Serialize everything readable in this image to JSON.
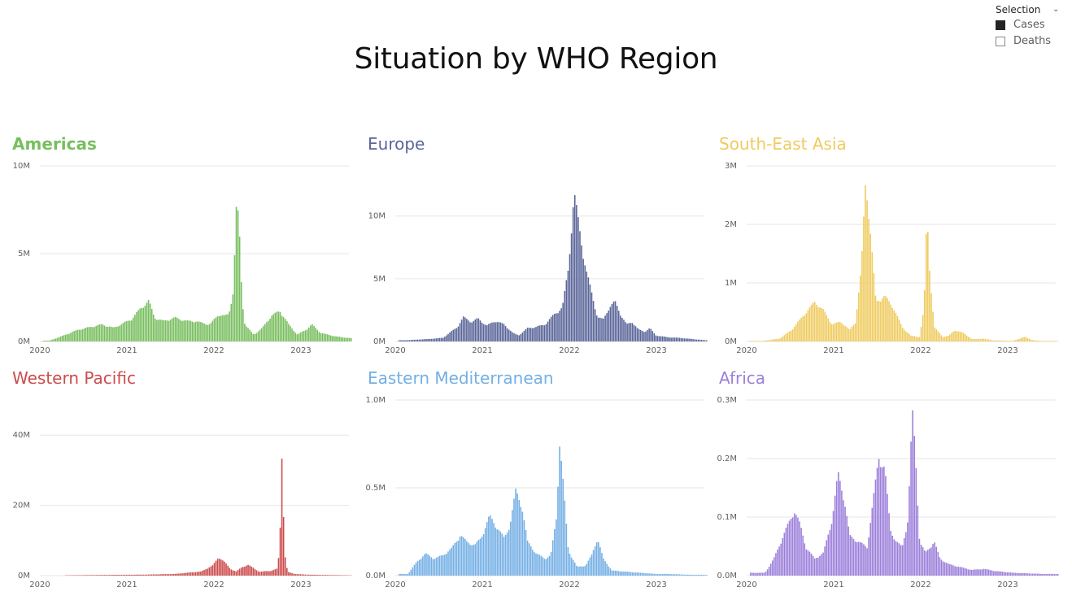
{
  "page_title": "Situation by WHO Region",
  "selection": {
    "title": "Selection",
    "options": [
      {
        "label": "Cases",
        "checked": true
      },
      {
        "label": "Deaths",
        "checked": false
      }
    ]
  },
  "chart_data": [
    {
      "type": "bar",
      "title": "Americas",
      "title_bold": true,
      "color": "#78BE5F",
      "x_ticks": [
        "2020",
        "2021",
        "2022",
        "2023"
      ],
      "y_ticks": [
        "0M",
        "5M",
        "10M"
      ],
      "y_tick_values": [
        0,
        5,
        10
      ],
      "ylim": [
        0,
        10
      ],
      "unit": "M",
      "peaks": [
        [
          0.02,
          0.05
        ],
        [
          0.06,
          0.3
        ],
        [
          0.12,
          0.7
        ],
        [
          0.2,
          1.0
        ],
        [
          0.24,
          0.8
        ],
        [
          0.3,
          1.3
        ],
        [
          0.33,
          1.9
        ],
        [
          0.36,
          2.4
        ],
        [
          0.38,
          1.4
        ],
        [
          0.41,
          1.2
        ],
        [
          0.45,
          1.4
        ],
        [
          0.49,
          1.2
        ],
        [
          0.52,
          1.2
        ],
        [
          0.54,
          1.1
        ],
        [
          0.57,
          1.0
        ],
        [
          0.6,
          1.6
        ],
        [
          0.62,
          1.5
        ],
        [
          0.635,
          1.6
        ],
        [
          0.65,
          3.0
        ],
        [
          0.662,
          8.5
        ],
        [
          0.672,
          6.0
        ],
        [
          0.68,
          2.5
        ],
        [
          0.69,
          1.0
        ],
        [
          0.72,
          0.4
        ],
        [
          0.75,
          0.8
        ],
        [
          0.78,
          1.5
        ],
        [
          0.81,
          1.8
        ],
        [
          0.84,
          1.0
        ],
        [
          0.87,
          0.4
        ],
        [
          0.9,
          0.7
        ],
        [
          0.92,
          1.0
        ],
        [
          0.95,
          0.5
        ],
        [
          1.0,
          0.3
        ],
        [
          1.05,
          0.2
        ],
        [
          1.1,
          0.05
        ]
      ]
    },
    {
      "type": "bar",
      "title": "Europe",
      "title_bold": false,
      "color": "#5A6599",
      "x_ticks": [
        "2020",
        "2021",
        "2022",
        "2023"
      ],
      "y_ticks": [
        "0M",
        "5M",
        "10M"
      ],
      "y_tick_values": [
        0,
        5,
        10
      ],
      "ylim": [
        0,
        14
      ],
      "unit": "M",
      "peaks": [
        [
          0.02,
          0.1
        ],
        [
          0.1,
          0.2
        ],
        [
          0.15,
          0.3
        ],
        [
          0.2,
          1.2
        ],
        [
          0.22,
          2.0
        ],
        [
          0.25,
          1.6
        ],
        [
          0.27,
          1.9
        ],
        [
          0.3,
          1.3
        ],
        [
          0.33,
          1.7
        ],
        [
          0.36,
          1.4
        ],
        [
          0.39,
          0.7
        ],
        [
          0.41,
          0.5
        ],
        [
          0.44,
          1.1
        ],
        [
          0.47,
          1.2
        ],
        [
          0.5,
          1.4
        ],
        [
          0.53,
          2.2
        ],
        [
          0.56,
          2.8
        ],
        [
          0.58,
          6.0
        ],
        [
          0.6,
          12.2
        ],
        [
          0.62,
          9.0
        ],
        [
          0.64,
          6.0
        ],
        [
          0.66,
          4.0
        ],
        [
          0.68,
          2.0
        ],
        [
          0.7,
          1.8
        ],
        [
          0.72,
          2.8
        ],
        [
          0.74,
          3.3
        ],
        [
          0.76,
          2.2
        ],
        [
          0.78,
          1.4
        ],
        [
          0.8,
          1.6
        ],
        [
          0.82,
          1.0
        ],
        [
          0.84,
          0.8
        ],
        [
          0.86,
          1.1
        ],
        [
          0.88,
          0.5
        ],
        [
          0.92,
          0.35
        ],
        [
          0.96,
          0.3
        ],
        [
          1.05,
          0.1
        ]
      ]
    },
    {
      "type": "bar",
      "title": "South-East Asia",
      "title_bold": false,
      "color": "#EFCB5F",
      "x_ticks": [
        "2020",
        "2021",
        "2022",
        "2023"
      ],
      "y_ticks": [
        "0M",
        "1M",
        "2M",
        "3M"
      ],
      "y_tick_values": [
        0,
        1,
        2,
        3
      ],
      "ylim": [
        0,
        3
      ],
      "unit": "M",
      "peaks": [
        [
          0.04,
          0.01
        ],
        [
          0.1,
          0.05
        ],
        [
          0.14,
          0.2
        ],
        [
          0.18,
          0.45
        ],
        [
          0.22,
          0.7
        ],
        [
          0.25,
          0.55
        ],
        [
          0.28,
          0.3
        ],
        [
          0.31,
          0.35
        ],
        [
          0.34,
          0.2
        ],
        [
          0.36,
          0.35
        ],
        [
          0.38,
          1.3
        ],
        [
          0.395,
          2.9
        ],
        [
          0.41,
          2.0
        ],
        [
          0.43,
          0.7
        ],
        [
          0.46,
          0.8
        ],
        [
          0.49,
          0.6
        ],
        [
          0.52,
          0.25
        ],
        [
          0.55,
          0.1
        ],
        [
          0.58,
          0.08
        ],
        [
          0.595,
          0.6
        ],
        [
          0.605,
          2.3
        ],
        [
          0.615,
          1.2
        ],
        [
          0.63,
          0.25
        ],
        [
          0.66,
          0.08
        ],
        [
          0.68,
          0.1
        ],
        [
          0.7,
          0.2
        ],
        [
          0.73,
          0.15
        ],
        [
          0.76,
          0.04
        ],
        [
          0.8,
          0.05
        ],
        [
          0.83,
          0.02
        ],
        [
          0.9,
          0.01
        ],
        [
          0.94,
          0.08
        ],
        [
          0.97,
          0.02
        ],
        [
          1.0,
          0.01
        ]
      ]
    },
    {
      "type": "bar",
      "title": "Western Pacific",
      "title_bold": false,
      "color": "#CC4C4C",
      "x_ticks": [
        "2020",
        "2021",
        "2022",
        "2023"
      ],
      "y_ticks": [
        "0M",
        "20M",
        "40M"
      ],
      "y_tick_values": [
        0,
        20,
        40
      ],
      "ylim": [
        0,
        50
      ],
      "unit": "M",
      "peaks": [
        [
          0.02,
          0.05
        ],
        [
          0.2,
          0.2
        ],
        [
          0.35,
          0.3
        ],
        [
          0.45,
          0.5
        ],
        [
          0.5,
          0.9
        ],
        [
          0.54,
          1.2
        ],
        [
          0.58,
          3.0
        ],
        [
          0.6,
          5.5
        ],
        [
          0.62,
          4.0
        ],
        [
          0.64,
          2.0
        ],
        [
          0.66,
          1.2
        ],
        [
          0.68,
          2.5
        ],
        [
          0.7,
          3.2
        ],
        [
          0.72,
          2.2
        ],
        [
          0.74,
          1.1
        ],
        [
          0.76,
          1.3
        ],
        [
          0.78,
          1.4
        ],
        [
          0.8,
          2.0
        ],
        [
          0.81,
          8.0
        ],
        [
          0.815,
          42.0
        ],
        [
          0.82,
          26.0
        ],
        [
          0.825,
          10.0
        ],
        [
          0.83,
          3.0
        ],
        [
          0.84,
          1.0
        ],
        [
          0.86,
          0.5
        ],
        [
          0.9,
          0.3
        ],
        [
          0.96,
          0.2
        ],
        [
          1.05,
          0.1
        ]
      ]
    },
    {
      "type": "bar",
      "title": "Eastern Mediterranean",
      "title_bold": false,
      "color": "#74AFE5",
      "x_ticks": [
        "2020",
        "2021",
        "2022",
        "2023"
      ],
      "y_ticks": [
        "0.0M",
        "0.5M",
        "1.0M"
      ],
      "y_tick_values": [
        0,
        0.5,
        1.0
      ],
      "ylim": [
        0,
        1.0
      ],
      "unit": "M",
      "peaks": [
        [
          0.03,
          0.01
        ],
        [
          0.06,
          0.08
        ],
        [
          0.09,
          0.13
        ],
        [
          0.12,
          0.1
        ],
        [
          0.15,
          0.12
        ],
        [
          0.18,
          0.16
        ],
        [
          0.21,
          0.24
        ],
        [
          0.23,
          0.2
        ],
        [
          0.26,
          0.18
        ],
        [
          0.28,
          0.22
        ],
        [
          0.31,
          0.35
        ],
        [
          0.33,
          0.3
        ],
        [
          0.36,
          0.22
        ],
        [
          0.38,
          0.3
        ],
        [
          0.4,
          0.5
        ],
        [
          0.42,
          0.42
        ],
        [
          0.44,
          0.2
        ],
        [
          0.47,
          0.13
        ],
        [
          0.5,
          0.1
        ],
        [
          0.52,
          0.12
        ],
        [
          0.54,
          0.35
        ],
        [
          0.55,
          0.8
        ],
        [
          0.56,
          0.6
        ],
        [
          0.58,
          0.15
        ],
        [
          0.61,
          0.05
        ],
        [
          0.64,
          0.06
        ],
        [
          0.66,
          0.12
        ],
        [
          0.68,
          0.22
        ],
        [
          0.7,
          0.1
        ],
        [
          0.73,
          0.03
        ],
        [
          0.8,
          0.02
        ],
        [
          0.88,
          0.01
        ],
        [
          0.92,
          0.01
        ],
        [
          1.0,
          0.005
        ]
      ]
    },
    {
      "type": "bar",
      "title": "Africa",
      "title_bold": false,
      "color": "#9C7FDB",
      "x_ticks": [
        "2020",
        "2021",
        "2022",
        "2023"
      ],
      "y_ticks": [
        "0.0M",
        "0.1M",
        "0.2M",
        "0.3M"
      ],
      "y_tick_values": [
        0,
        0.1,
        0.2,
        0.3
      ],
      "ylim": [
        0,
        0.3
      ],
      "unit": "M",
      "peaks": [
        [
          0.05,
          0.005
        ],
        [
          0.08,
          0.03
        ],
        [
          0.12,
          0.08
        ],
        [
          0.15,
          0.115
        ],
        [
          0.17,
          0.09
        ],
        [
          0.19,
          0.05
        ],
        [
          0.22,
          0.03
        ],
        [
          0.25,
          0.04
        ],
        [
          0.28,
          0.1
        ],
        [
          0.3,
          0.18
        ],
        [
          0.32,
          0.14
        ],
        [
          0.34,
          0.07
        ],
        [
          0.37,
          0.06
        ],
        [
          0.4,
          0.05
        ],
        [
          0.42,
          0.13
        ],
        [
          0.44,
          0.21
        ],
        [
          0.46,
          0.19
        ],
        [
          0.48,
          0.08
        ],
        [
          0.5,
          0.06
        ],
        [
          0.52,
          0.05
        ],
        [
          0.54,
          0.1
        ],
        [
          0.555,
          0.29
        ],
        [
          0.565,
          0.22
        ],
        [
          0.58,
          0.06
        ],
        [
          0.6,
          0.04
        ],
        [
          0.63,
          0.06
        ],
        [
          0.65,
          0.03
        ],
        [
          0.68,
          0.02
        ],
        [
          0.72,
          0.015
        ],
        [
          0.76,
          0.01
        ],
        [
          0.8,
          0.012
        ],
        [
          0.84,
          0.008
        ],
        [
          0.9,
          0.005
        ],
        [
          1.0,
          0.003
        ]
      ]
    }
  ]
}
